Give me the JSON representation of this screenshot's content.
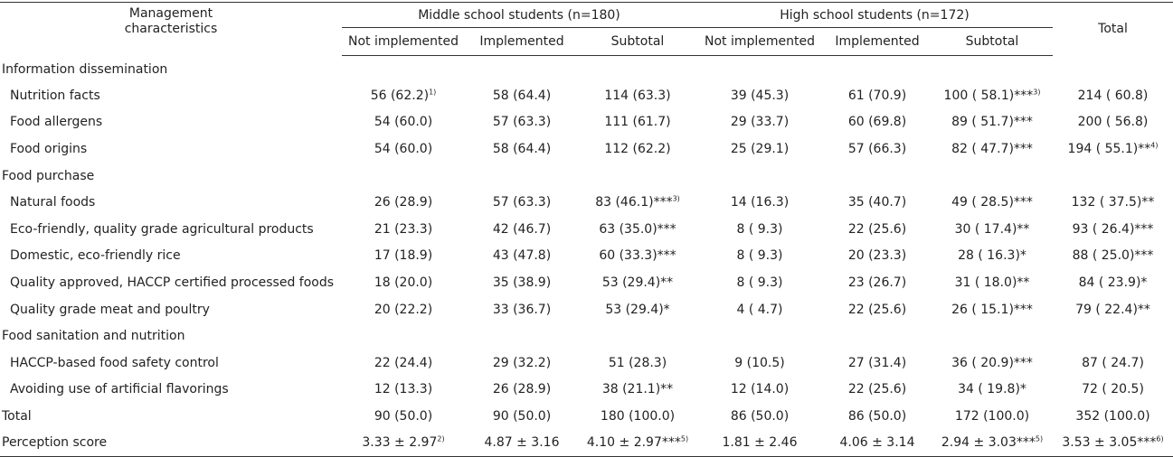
{
  "header": {
    "col_label": "Management characteristics",
    "col_label_line1": "Management",
    "col_label_line2": "characteristics",
    "group_middle": "Middle school students (n=180)",
    "group_high": "High school students (n=172)",
    "total": "Total",
    "sub_not": "Not implemented",
    "sub_impl": "Implemented",
    "sub_subtotal": "Subtotal"
  },
  "rows": [
    {
      "type": "section",
      "label": "Information dissemination"
    },
    {
      "type": "data",
      "label": "Nutrition facts",
      "cells": [
        {
          "v": "56 (62.2)",
          "sup": "1)"
        },
        {
          "v": "58 (64.4)"
        },
        {
          "v": "114 (63.3)"
        },
        {
          "v": "39 (45.3)"
        },
        {
          "v": "61 (70.9)"
        },
        {
          "v": "100 ( 58.1)***",
          "sup": "3)"
        },
        {
          "v": "214 ( 60.8)"
        }
      ]
    },
    {
      "type": "data",
      "label": "Food allergens",
      "cells": [
        {
          "v": "54 (60.0)"
        },
        {
          "v": "57 (63.3)"
        },
        {
          "v": "111 (61.7)"
        },
        {
          "v": "29 (33.7)"
        },
        {
          "v": "60 (69.8)"
        },
        {
          "v": "89 ( 51.7)***"
        },
        {
          "v": "200 ( 56.8)"
        }
      ]
    },
    {
      "type": "data",
      "label": "Food origins",
      "cells": [
        {
          "v": "54 (60.0)"
        },
        {
          "v": "58 (64.4)"
        },
        {
          "v": "112 (62.2)"
        },
        {
          "v": "25 (29.1)"
        },
        {
          "v": "57 (66.3)"
        },
        {
          "v": "82 ( 47.7)***"
        },
        {
          "v": "194 ( 55.1)**",
          "sup": "4)"
        }
      ]
    },
    {
      "type": "section",
      "label": "Food purchase"
    },
    {
      "type": "data",
      "label": "Natural foods",
      "cells": [
        {
          "v": "26 (28.9)"
        },
        {
          "v": "57 (63.3)"
        },
        {
          "v": "83 (46.1)***",
          "sup": "3)"
        },
        {
          "v": "14 (16.3)"
        },
        {
          "v": "35 (40.7)"
        },
        {
          "v": "49 ( 28.5)***"
        },
        {
          "v": "132 ( 37.5)**"
        }
      ]
    },
    {
      "type": "data",
      "label": "Eco-friendly, quality grade agricultural products",
      "cells": [
        {
          "v": "21 (23.3)"
        },
        {
          "v": "42 (46.7)"
        },
        {
          "v": "63 (35.0)***"
        },
        {
          "v": "8 ( 9.3)"
        },
        {
          "v": "22 (25.6)"
        },
        {
          "v": "30 ( 17.4)**"
        },
        {
          "v": "93 ( 26.4)***"
        }
      ]
    },
    {
      "type": "data",
      "label": "Domestic, eco-friendly rice",
      "cells": [
        {
          "v": "17 (18.9)"
        },
        {
          "v": "43 (47.8)"
        },
        {
          "v": "60 (33.3)***"
        },
        {
          "v": "8 ( 9.3)"
        },
        {
          "v": "20 (23.3)"
        },
        {
          "v": "28 ( 16.3)*"
        },
        {
          "v": "88 ( 25.0)***"
        }
      ]
    },
    {
      "type": "data",
      "label": "Quality approved, HACCP certified processed foods",
      "cells": [
        {
          "v": "18 (20.0)"
        },
        {
          "v": "35 (38.9)"
        },
        {
          "v": "53 (29.4)**"
        },
        {
          "v": "8 ( 9.3)"
        },
        {
          "v": "23 (26.7)"
        },
        {
          "v": "31 ( 18.0)**"
        },
        {
          "v": "84 ( 23.9)*"
        }
      ]
    },
    {
      "type": "data",
      "label": "Quality grade meat and poultry",
      "cells": [
        {
          "v": "20 (22.2)"
        },
        {
          "v": "33 (36.7)"
        },
        {
          "v": "53 (29.4)*"
        },
        {
          "v": "4 ( 4.7)"
        },
        {
          "v": "22 (25.6)"
        },
        {
          "v": "26 ( 15.1)***"
        },
        {
          "v": "79 ( 22.4)**"
        }
      ]
    },
    {
      "type": "section",
      "label": "Food sanitation and nutrition"
    },
    {
      "type": "data",
      "label": "HACCP-based food safety control",
      "cells": [
        {
          "v": "22 (24.4)"
        },
        {
          "v": "29 (32.2)"
        },
        {
          "v": "51 (28.3)"
        },
        {
          "v": "9 (10.5)"
        },
        {
          "v": "27 (31.4)"
        },
        {
          "v": "36 ( 20.9)***"
        },
        {
          "v": "87 ( 24.7)"
        }
      ]
    },
    {
      "type": "data",
      "label": "Avoiding use of artificial flavorings",
      "cells": [
        {
          "v": "12 (13.3)"
        },
        {
          "v": "26 (28.9)"
        },
        {
          "v": "38 (21.1)**"
        },
        {
          "v": "12 (14.0)"
        },
        {
          "v": "22 (25.6)"
        },
        {
          "v": "34 ( 19.8)*"
        },
        {
          "v": "72 ( 20.5)"
        }
      ]
    },
    {
      "type": "total",
      "label": "Total",
      "cells": [
        {
          "v": "90 (50.0)"
        },
        {
          "v": "90 (50.0)"
        },
        {
          "v": "180 (100.0)"
        },
        {
          "v": "86 (50.0)"
        },
        {
          "v": "86 (50.0)"
        },
        {
          "v": "172 (100.0)"
        },
        {
          "v": "352 (100.0)"
        }
      ]
    },
    {
      "type": "total",
      "label": "Perception score",
      "cells": [
        {
          "v": "3.33 ± 2.97",
          "sup": "2)"
        },
        {
          "v": "4.87 ± 3.16"
        },
        {
          "v": "4.10 ± 2.97***",
          "sup": "5)"
        },
        {
          "v": "1.81 ± 2.46"
        },
        {
          "v": "4.06 ± 3.14"
        },
        {
          "v": "2.94 ± 3.03***",
          "sup": "5)"
        },
        {
          "v": "3.53 ± 3.05***",
          "sup": "6)"
        }
      ]
    }
  ]
}
